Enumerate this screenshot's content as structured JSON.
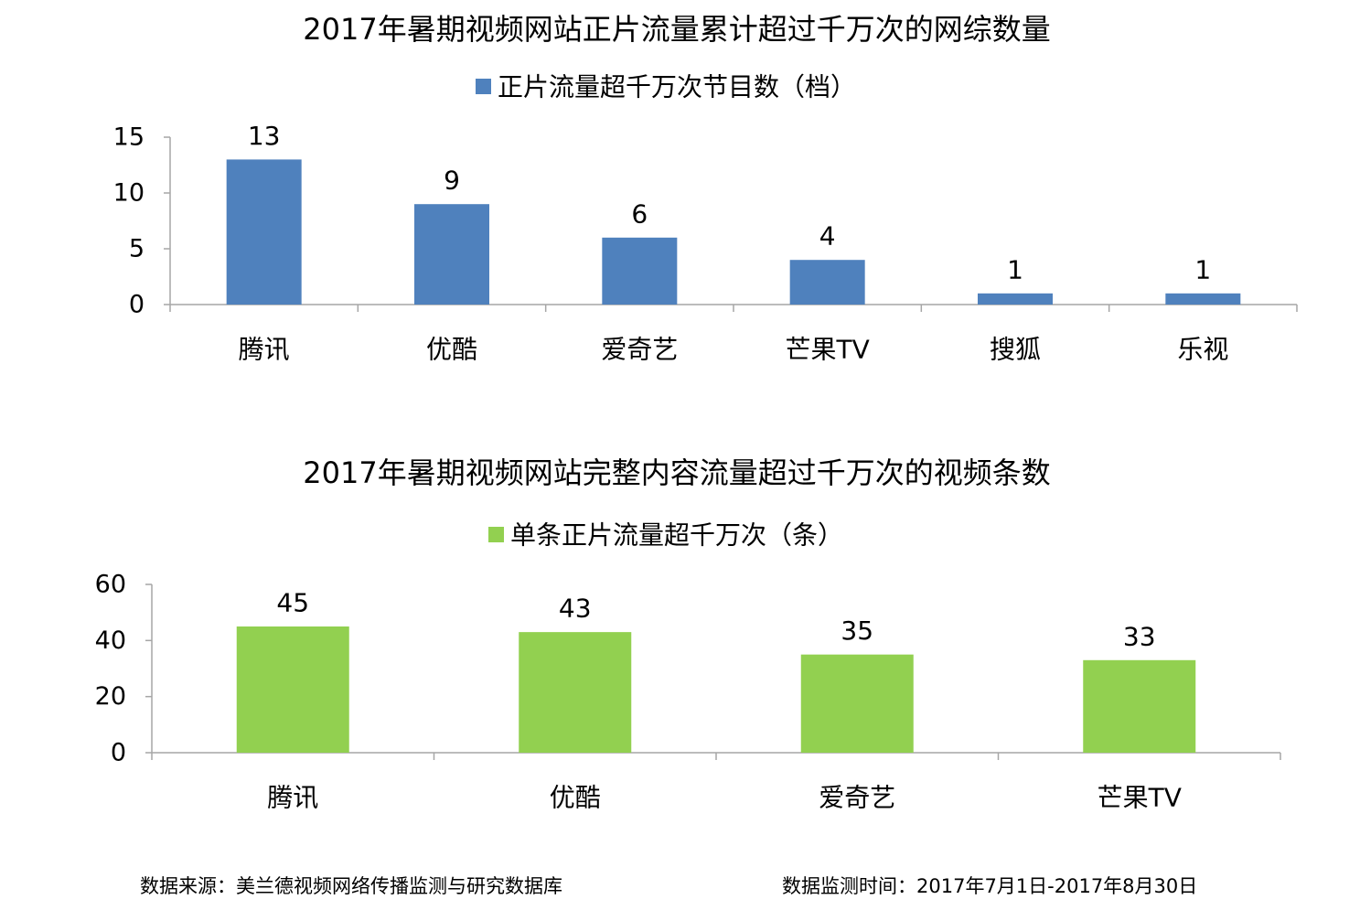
{
  "chart_data": [
    {
      "type": "bar",
      "title": "2017年暑期视频网站正片流量累计超过千万次的网综数量",
      "categories": [
        "腾讯",
        "优酷",
        "爱奇艺",
        "芒果TV",
        "搜狐",
        "乐视"
      ],
      "series": [
        {
          "name": "正片流量超千万次节目数（档）",
          "values": [
            13,
            9,
            6,
            4,
            1,
            1
          ],
          "color": "#4f81bd"
        }
      ],
      "ylim": [
        0,
        15
      ],
      "yticks": [
        0,
        5,
        10,
        15
      ],
      "grid": false,
      "legend": "top"
    },
    {
      "type": "bar",
      "title": "2017年暑期视频网站完整内容流量超过千万次的视频条数",
      "categories": [
        "腾讯",
        "优酷",
        "爱奇艺",
        "芒果TV"
      ],
      "series": [
        {
          "name": "单条正片流量超千万次（条）",
          "values": [
            45,
            43,
            35,
            33
          ],
          "color": "#92d050"
        }
      ],
      "ylim": [
        0,
        60
      ],
      "yticks": [
        0,
        20,
        40,
        60
      ],
      "grid": false,
      "legend": "top"
    }
  ],
  "footer": {
    "source": "数据来源：美兰德视频网络传播监测与研究数据库",
    "period": "数据监测时间：2017年7月1日-2017年8月30日"
  }
}
